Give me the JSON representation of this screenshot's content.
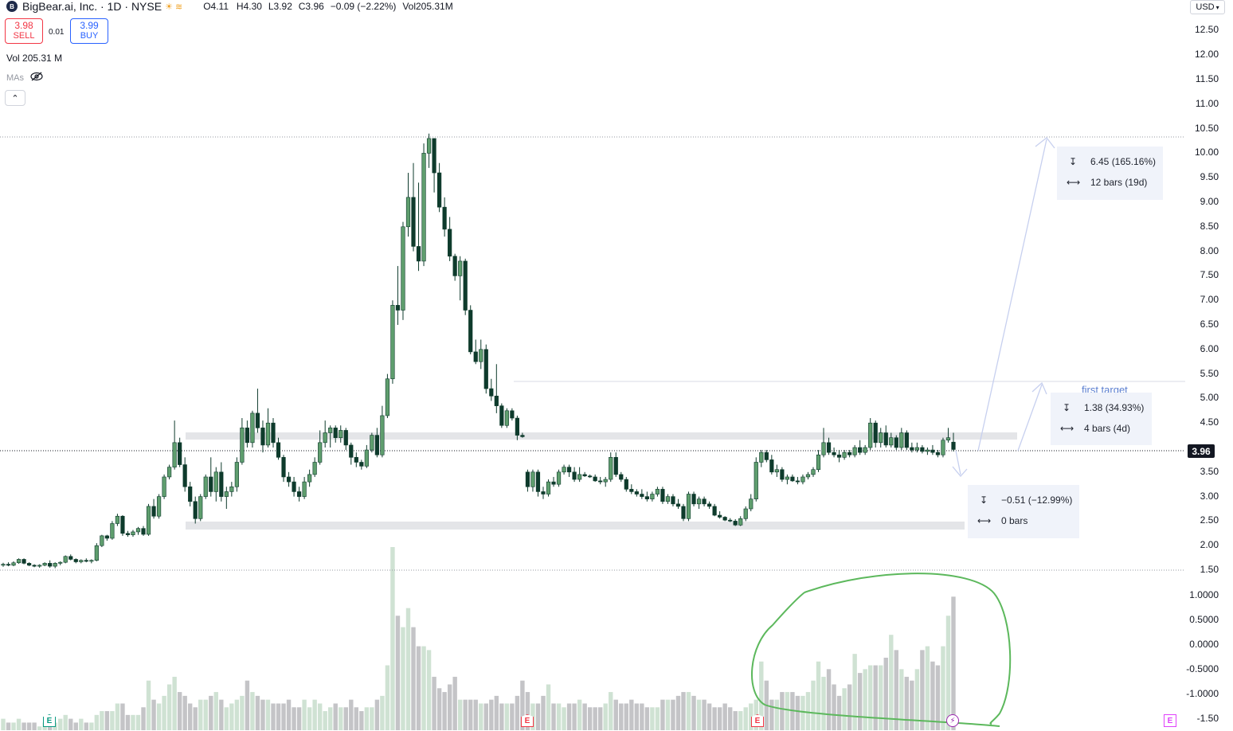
{
  "header": {
    "symbol_title": "BigBear.ai, Inc. · 1D · NYSE",
    "ohlc": {
      "open": "O4.11",
      "high": "H4.30",
      "low": "L3.92",
      "close": "C3.96",
      "change": "−0.09 (−2.22%)",
      "volume": "Vol205.31M"
    }
  },
  "trade": {
    "sell_price": "3.98",
    "sell_label": "SELL",
    "spread": "0.01",
    "buy_price": "3.99",
    "buy_label": "BUY"
  },
  "indicators": {
    "volume_label": "Vol",
    "volume_value": "205.31 M",
    "mas_label": "MAs"
  },
  "collapse_icon": "chevron-up-icon",
  "currency": "USD",
  "price_axis": {
    "labels": [
      "12.50",
      "12.00",
      "11.50",
      "11.00",
      "10.50",
      "10.00",
      "9.50",
      "9.00",
      "8.50",
      "8.00",
      "7.50",
      "7.00",
      "6.50",
      "6.00",
      "5.50",
      "5.00",
      "4.50",
      "3.50",
      "3.00",
      "2.50",
      "2.00",
      "1.50"
    ],
    "current_price": "3.96"
  },
  "volume_axis": {
    "labels": [
      "1.0000",
      "0.5000",
      "0.0000",
      "-0.5000",
      "-1.0000",
      "-1.50"
    ]
  },
  "measure_boxes": [
    {
      "price_change": "6.45 (165.16%)",
      "bars": "12 bars (19d)"
    },
    {
      "price_change": "1.38 (34.93%)",
      "bars": "4 bars (4d)"
    },
    {
      "price_change": "−0.51 (−12.99%)",
      "bars": "0 bars"
    }
  ],
  "annotations": {
    "first_target": "first target"
  },
  "event_markers": [
    {
      "label": "E",
      "kind": "earnings-past"
    },
    {
      "label": "E",
      "kind": "earnings-red"
    },
    {
      "label": "E",
      "kind": "earnings-red"
    },
    {
      "label": "⚡",
      "kind": "event"
    },
    {
      "label": "E",
      "kind": "earnings-future"
    }
  ],
  "colors": {
    "up": "#5f9e6e",
    "down": "#0e3b2c",
    "vol_up": "#cfe2d3",
    "vol_down": "#c4c4c7",
    "measure_line": "#c7d0ef",
    "highlight_band": "#e4e5e8",
    "circle": "#5cb85c"
  },
  "chart_data": {
    "type": "candlestick",
    "title": "BigBear.ai, Inc. · 1D · NYSE",
    "ylim": [
      1.5,
      12.5
    ],
    "y_scale": "linear",
    "grid": false,
    "candles": [
      [
        1.6,
        1.65,
        1.57,
        1.62
      ],
      [
        1.62,
        1.66,
        1.58,
        1.6
      ],
      [
        1.6,
        1.68,
        1.58,
        1.65
      ],
      [
        1.65,
        1.74,
        1.63,
        1.72
      ],
      [
        1.72,
        1.74,
        1.62,
        1.64
      ],
      [
        1.64,
        1.66,
        1.58,
        1.6
      ],
      [
        1.6,
        1.62,
        1.56,
        1.58
      ],
      [
        1.58,
        1.62,
        1.55,
        1.6
      ],
      [
        1.6,
        1.66,
        1.58,
        1.64
      ],
      [
        1.64,
        1.7,
        1.55,
        1.58
      ],
      [
        1.58,
        1.66,
        1.54,
        1.64
      ],
      [
        1.64,
        1.68,
        1.6,
        1.66
      ],
      [
        1.66,
        1.8,
        1.64,
        1.78
      ],
      [
        1.78,
        1.82,
        1.7,
        1.72
      ],
      [
        1.72,
        1.74,
        1.64,
        1.67
      ],
      [
        1.67,
        1.72,
        1.64,
        1.7
      ],
      [
        1.7,
        1.74,
        1.66,
        1.68
      ],
      [
        1.68,
        1.72,
        1.64,
        1.7
      ],
      [
        1.7,
        2.05,
        1.68,
        2.0
      ],
      [
        2.0,
        2.22,
        1.97,
        2.2
      ],
      [
        2.2,
        2.22,
        2.1,
        2.15
      ],
      [
        2.15,
        2.5,
        2.12,
        2.45
      ],
      [
        2.45,
        2.65,
        2.4,
        2.6
      ],
      [
        2.6,
        2.62,
        2.2,
        2.25
      ],
      [
        2.25,
        2.3,
        2.18,
        2.22
      ],
      [
        2.22,
        2.32,
        2.18,
        2.28
      ],
      [
        2.28,
        2.38,
        2.22,
        2.35
      ],
      [
        2.35,
        2.4,
        2.2,
        2.23
      ],
      [
        2.23,
        2.85,
        2.2,
        2.8
      ],
      [
        2.8,
        2.95,
        2.55,
        2.6
      ],
      [
        2.6,
        3.05,
        2.55,
        3.0
      ],
      [
        3.0,
        3.45,
        2.95,
        3.4
      ],
      [
        3.4,
        3.65,
        3.35,
        3.6
      ],
      [
        3.6,
        4.55,
        3.55,
        4.1
      ],
      [
        4.1,
        4.2,
        3.6,
        3.65
      ],
      [
        3.65,
        3.8,
        3.1,
        3.2
      ],
      [
        3.2,
        3.3,
        2.8,
        2.9
      ],
      [
        2.9,
        3.0,
        2.45,
        2.55
      ],
      [
        2.55,
        3.05,
        2.5,
        3.0
      ],
      [
        3.0,
        3.45,
        2.95,
        3.4
      ],
      [
        3.4,
        3.8,
        3.0,
        3.1
      ],
      [
        3.1,
        3.6,
        2.9,
        3.5
      ],
      [
        3.5,
        3.7,
        2.9,
        3.0
      ],
      [
        3.0,
        3.2,
        2.75,
        3.1
      ],
      [
        3.1,
        3.3,
        3.0,
        3.2
      ],
      [
        3.2,
        3.8,
        3.1,
        3.7
      ],
      [
        3.7,
        4.6,
        3.65,
        4.4
      ],
      [
        4.4,
        4.55,
        4.0,
        4.1
      ],
      [
        4.1,
        4.75,
        4.0,
        4.7
      ],
      [
        4.7,
        5.2,
        4.3,
        4.4
      ],
      [
        4.4,
        4.55,
        3.9,
        4.05
      ],
      [
        4.05,
        4.8,
        4.0,
        4.5
      ],
      [
        4.5,
        4.6,
        4.0,
        4.1
      ],
      [
        4.1,
        4.2,
        3.75,
        3.8
      ],
      [
        3.8,
        3.85,
        3.3,
        3.4
      ],
      [
        3.4,
        3.5,
        3.2,
        3.3
      ],
      [
        3.3,
        3.4,
        3.0,
        3.1
      ],
      [
        3.1,
        3.2,
        2.9,
        3.0
      ],
      [
        3.0,
        3.4,
        2.95,
        3.3
      ],
      [
        3.3,
        3.55,
        3.2,
        3.45
      ],
      [
        3.45,
        3.8,
        3.4,
        3.7
      ],
      [
        3.7,
        4.35,
        3.65,
        4.1
      ],
      [
        4.1,
        4.55,
        4.0,
        4.3
      ],
      [
        4.3,
        4.45,
        4.0,
        4.4
      ],
      [
        4.4,
        4.45,
        4.1,
        4.2
      ],
      [
        4.2,
        4.45,
        4.1,
        4.35
      ],
      [
        4.35,
        4.4,
        3.95,
        4.05
      ],
      [
        4.05,
        4.1,
        3.65,
        3.8
      ],
      [
        3.8,
        3.9,
        3.6,
        3.7
      ],
      [
        3.7,
        3.75,
        3.55,
        3.62
      ],
      [
        3.62,
        4.05,
        3.58,
        3.95
      ],
      [
        3.95,
        4.3,
        3.9,
        4.25
      ],
      [
        4.25,
        4.4,
        3.8,
        3.85
      ],
      [
        3.85,
        4.85,
        3.8,
        4.65
      ],
      [
        4.65,
        5.5,
        4.6,
        5.4
      ],
      [
        5.4,
        7.0,
        5.3,
        6.9
      ],
      [
        6.9,
        7.7,
        6.5,
        6.8
      ],
      [
        6.8,
        8.6,
        6.6,
        8.5
      ],
      [
        8.5,
        9.6,
        8.3,
        9.1
      ],
      [
        9.1,
        9.8,
        8.0,
        8.1
      ],
      [
        8.1,
        9.4,
        7.6,
        7.8
      ],
      [
        7.8,
        10.2,
        7.7,
        10.0
      ],
      [
        10.0,
        10.4,
        9.7,
        10.3
      ],
      [
        10.3,
        10.3,
        9.2,
        9.6
      ],
      [
        9.6,
        9.8,
        8.8,
        8.9
      ],
      [
        8.9,
        9.1,
        8.3,
        8.45
      ],
      [
        8.45,
        8.7,
        7.8,
        7.9
      ],
      [
        7.9,
        7.95,
        7.4,
        7.5
      ],
      [
        7.5,
        7.9,
        7.0,
        7.8
      ],
      [
        7.8,
        7.85,
        6.7,
        6.8
      ],
      [
        6.8,
        6.9,
        5.9,
        5.95
      ],
      [
        5.95,
        6.2,
        5.7,
        5.75
      ],
      [
        5.75,
        6.2,
        5.6,
        6.0
      ],
      [
        6.0,
        6.1,
        5.1,
        5.2
      ],
      [
        5.2,
        5.4,
        4.95,
        5.05
      ],
      [
        5.05,
        5.7,
        4.7,
        4.85
      ],
      [
        4.85,
        4.9,
        4.4,
        4.45
      ],
      [
        4.45,
        4.8,
        4.4,
        4.75
      ],
      [
        4.75,
        4.8,
        4.55,
        4.6
      ],
      [
        4.6,
        4.65,
        4.15,
        4.25
      ],
      [
        4.25,
        4.3,
        4.2,
        4.22
      ],
      [
        3.5,
        3.55,
        3.1,
        3.2
      ],
      [
        3.2,
        3.55,
        3.1,
        3.5
      ],
      [
        3.5,
        3.55,
        3.0,
        3.1
      ],
      [
        3.1,
        3.2,
        2.95,
        3.05
      ],
      [
        3.05,
        3.35,
        3.0,
        3.3
      ],
      [
        3.3,
        3.4,
        3.2,
        3.25
      ],
      [
        3.25,
        3.55,
        3.2,
        3.5
      ],
      [
        3.5,
        3.65,
        3.45,
        3.6
      ],
      [
        3.6,
        3.65,
        3.4,
        3.5
      ],
      [
        3.5,
        3.6,
        3.3,
        3.35
      ],
      [
        3.35,
        3.6,
        3.3,
        3.45
      ],
      [
        3.45,
        3.5,
        3.4,
        3.42
      ],
      [
        3.42,
        3.45,
        3.38,
        3.4
      ],
      [
        3.4,
        3.45,
        3.3,
        3.32
      ],
      [
        3.32,
        3.4,
        3.25,
        3.3
      ],
      [
        3.3,
        3.4,
        3.2,
        3.35
      ],
      [
        3.35,
        3.9,
        3.3,
        3.8
      ],
      [
        3.8,
        3.9,
        3.4,
        3.45
      ],
      [
        3.45,
        3.5,
        3.3,
        3.35
      ],
      [
        3.35,
        3.4,
        3.1,
        3.15
      ],
      [
        3.15,
        3.25,
        3.05,
        3.1
      ],
      [
        3.1,
        3.15,
        3.0,
        3.05
      ],
      [
        3.05,
        3.15,
        2.95,
        3.0
      ],
      [
        3.0,
        3.1,
        2.9,
        2.95
      ],
      [
        2.95,
        3.1,
        2.9,
        3.05
      ],
      [
        3.05,
        3.2,
        3.0,
        3.15
      ],
      [
        3.15,
        3.2,
        2.85,
        2.9
      ],
      [
        2.9,
        3.05,
        2.85,
        3.0
      ],
      [
        3.0,
        3.05,
        2.8,
        2.85
      ],
      [
        2.85,
        2.95,
        2.75,
        2.8
      ],
      [
        2.8,
        2.85,
        2.5,
        2.55
      ],
      [
        2.55,
        3.1,
        2.5,
        3.05
      ],
      [
        3.05,
        3.1,
        2.8,
        2.85
      ],
      [
        2.85,
        3.0,
        2.75,
        2.95
      ],
      [
        2.95,
        3.0,
        2.8,
        2.85
      ],
      [
        2.85,
        2.9,
        2.75,
        2.8
      ],
      [
        2.8,
        2.85,
        2.6,
        2.62
      ],
      [
        2.62,
        2.7,
        2.55,
        2.58
      ],
      [
        2.58,
        2.6,
        2.5,
        2.52
      ],
      [
        2.52,
        2.56,
        2.48,
        2.5
      ],
      [
        2.5,
        2.54,
        2.4,
        2.42
      ],
      [
        2.42,
        2.6,
        2.4,
        2.55
      ],
      [
        2.55,
        2.8,
        2.5,
        2.75
      ],
      [
        2.75,
        3.05,
        2.7,
        2.95
      ],
      [
        2.95,
        3.8,
        2.9,
        3.7
      ],
      [
        3.7,
        3.95,
        3.6,
        3.9
      ],
      [
        3.9,
        3.95,
        3.7,
        3.75
      ],
      [
        3.75,
        3.85,
        3.45,
        3.5
      ],
      [
        3.5,
        3.65,
        3.4,
        3.55
      ],
      [
        3.55,
        3.6,
        3.3,
        3.35
      ],
      [
        3.35,
        3.45,
        3.25,
        3.4
      ],
      [
        3.4,
        3.45,
        3.3,
        3.32
      ],
      [
        3.32,
        3.4,
        3.25,
        3.3
      ],
      [
        3.3,
        3.45,
        3.25,
        3.4
      ],
      [
        3.4,
        3.5,
        3.35,
        3.45
      ],
      [
        3.45,
        3.6,
        3.4,
        3.55
      ],
      [
        3.55,
        3.95,
        3.5,
        3.85
      ],
      [
        3.85,
        4.4,
        3.8,
        4.1
      ],
      [
        4.1,
        4.2,
        3.85,
        3.9
      ],
      [
        3.9,
        4.0,
        3.8,
        3.85
      ],
      [
        3.85,
        3.95,
        3.7,
        3.8
      ],
      [
        3.8,
        3.95,
        3.75,
        3.9
      ],
      [
        3.9,
        3.95,
        3.8,
        3.85
      ],
      [
        3.85,
        4.05,
        3.8,
        4.0
      ],
      [
        4.0,
        4.15,
        3.85,
        3.9
      ],
      [
        3.9,
        4.05,
        3.85,
        4.0
      ],
      [
        4.0,
        4.6,
        3.95,
        4.5
      ],
      [
        4.5,
        4.55,
        4.0,
        4.1
      ],
      [
        4.1,
        4.4,
        4.0,
        4.3
      ],
      [
        4.3,
        4.45,
        4.0,
        4.05
      ],
      [
        4.05,
        4.3,
        4.0,
        4.2
      ],
      [
        4.2,
        4.25,
        3.95,
        4.0
      ],
      [
        4.0,
        4.4,
        3.95,
        4.3
      ],
      [
        4.3,
        4.35,
        3.95,
        4.0
      ],
      [
        4.0,
        4.1,
        3.9,
        3.95
      ],
      [
        3.95,
        4.1,
        3.9,
        4.0
      ],
      [
        4.0,
        4.05,
        3.88,
        3.92
      ],
      [
        3.92,
        4.0,
        3.85,
        3.95
      ],
      [
        3.95,
        4.05,
        3.85,
        3.9
      ],
      [
        3.9,
        3.95,
        3.8,
        3.85
      ],
      [
        3.85,
        4.2,
        3.8,
        4.15
      ],
      [
        4.15,
        4.4,
        4.1,
        4.2
      ],
      [
        4.11,
        4.3,
        3.92,
        3.96
      ]
    ],
    "volumes": [
      3,
      2,
      2,
      3,
      2,
      2,
      2,
      1,
      2,
      2,
      2,
      3,
      4,
      3,
      2,
      3,
      2,
      2,
      4,
      5,
      5,
      5,
      7,
      7,
      4,
      4,
      4,
      6,
      13,
      8,
      7,
      9,
      12,
      14,
      10,
      9,
      7,
      6,
      8,
      8,
      9,
      10,
      8,
      6,
      7,
      8,
      9,
      13,
      10,
      9,
      8,
      8,
      7,
      7,
      7,
      8,
      6,
      6,
      8,
      6,
      8,
      7,
      5,
      6,
      7,
      6,
      6,
      8,
      6,
      5,
      6,
      6,
      8,
      9,
      17,
      48,
      30,
      27,
      32,
      27,
      22,
      22,
      21,
      14,
      11,
      10,
      12,
      14,
      8,
      8,
      8,
      8,
      7,
      7,
      8,
      9,
      7,
      7,
      7,
      9,
      13,
      10,
      7,
      7,
      9,
      12,
      7,
      7,
      6,
      7,
      7,
      8,
      7,
      6,
      6,
      6,
      7,
      10,
      8,
      7,
      7,
      8,
      7,
      7,
      6,
      6,
      6,
      8,
      8,
      8,
      9,
      10,
      10,
      9,
      8,
      8,
      7,
      6,
      6,
      7,
      6,
      5,
      5,
      6,
      7,
      8,
      18,
      13,
      8,
      8,
      10,
      10,
      10,
      9,
      9,
      10,
      13,
      18,
      14,
      16,
      12,
      9,
      11,
      12,
      20,
      15,
      16,
      17,
      17,
      17,
      19,
      25,
      21,
      16,
      14,
      13,
      16,
      21,
      22,
      18,
      17,
      22,
      30,
      35
    ]
  }
}
